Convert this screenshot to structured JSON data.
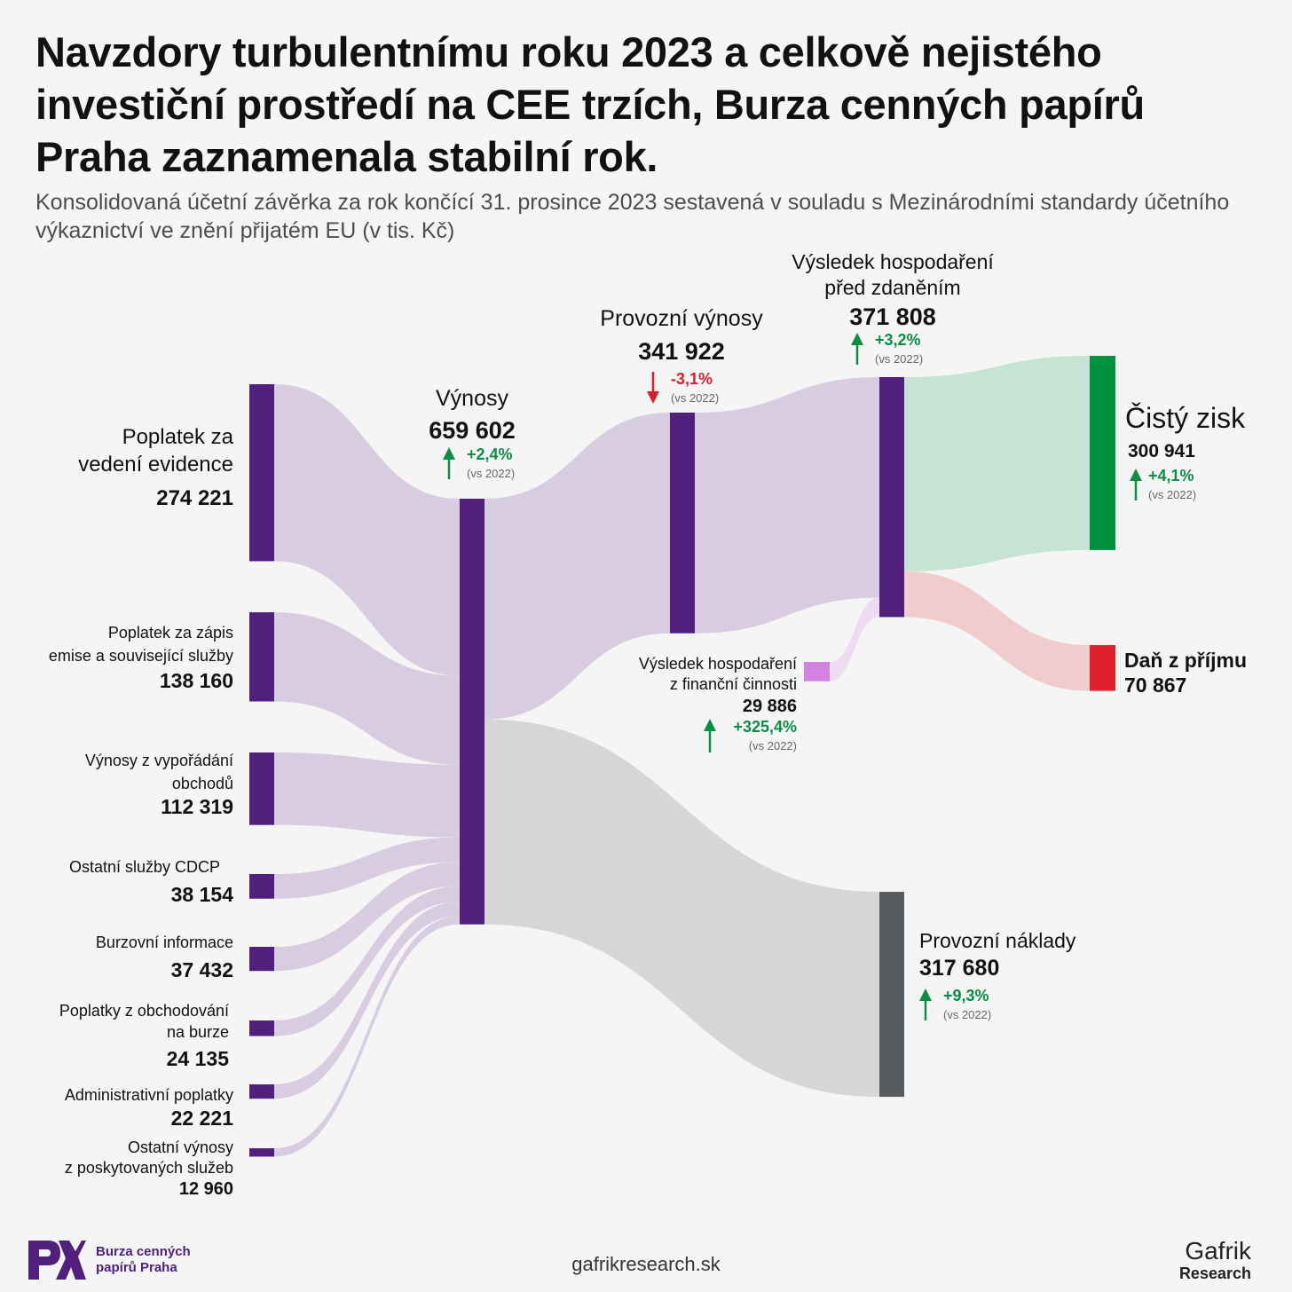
{
  "title": "Navzdory turbulentnímu roku 2023 a celkově nejistého investiční prostředí na CEE trzích, Burza cenných papírů Praha zaznamenala stabilní rok.",
  "subtitle": "Konsolidovaná účetní závěrka za rok končící 31. prosince 2023 sestavená v souladu s Mezinárodními standardy účetního výkaznictví ve znění přijatém EU (v tis. Kč)",
  "footer": {
    "logo_line1": "Burza cenných",
    "logo_line2": "papírů Praha",
    "website": "gafrikresearch.sk",
    "brand_line1": "Gafrik",
    "brand_line2": "Research"
  },
  "colors": {
    "node": "#51207c",
    "flow": "#d8cde0",
    "fin_node": "#d283df",
    "fin_flow": "#eedbf2",
    "profit_node": "#00913e",
    "profit_flow": "#c6e3d3",
    "tax_node": "#e0202d",
    "tax_flow": "#f0cccd",
    "cost_node": "#595c5f",
    "cost_flow": "#d6d6d7",
    "up": "#0e8c46",
    "down": "#d81e2c",
    "vs": "#666666"
  },
  "chart_data": {
    "type": "sankey",
    "unit": "tis. Kč",
    "nodes": [
      {
        "id": "poplatek-evidence",
        "label": "Poplatek za vedení evidence",
        "value": "274 221",
        "amount": 274221
      },
      {
        "id": "poplatek-zapis",
        "label": "Poplatek za zápis emise a související služby",
        "value": "138 160",
        "amount": 138160
      },
      {
        "id": "vyporadani",
        "label": "Výnosy z vypořádání obchodů",
        "value": "112 319",
        "amount": 112319
      },
      {
        "id": "ostatni-cdcp",
        "label": "Ostatní služby CDCP",
        "value": "38 154",
        "amount": 38154
      },
      {
        "id": "burzovni-informace",
        "label": "Burzovní informace",
        "value": "37 432",
        "amount": 37432
      },
      {
        "id": "poplatky-obchodovani",
        "label": "Poplatky z obchodování na burze",
        "value": "24 135",
        "amount": 24135
      },
      {
        "id": "administrativni",
        "label": "Administrativní poplatky",
        "value": "22 221",
        "amount": 22221
      },
      {
        "id": "ostatni-vynosy",
        "label": "Ostatní výnosy z poskytovaných služeb",
        "value": "12 960",
        "amount": 12960
      },
      {
        "id": "vynosy",
        "label": "Výnosy",
        "value": "659 602",
        "amount": 659602,
        "change": "+2,4%",
        "direction": "up",
        "vs": "(vs 2022)"
      },
      {
        "id": "provozni-vynosy",
        "label": "Provozní výnosy",
        "value": "341 922",
        "amount": 341922,
        "change": "-3,1%",
        "direction": "down",
        "vs": "(vs 2022)"
      },
      {
        "id": "financni",
        "label": "Výsledek hospodaření z finanční činnosti",
        "value": "29 886",
        "amount": 29886,
        "change": "+325,4%",
        "direction": "up",
        "vs": "(vs 2022)"
      },
      {
        "id": "pred-zdanenim",
        "label": "Výsledek hospodaření před zdaněním",
        "value": "371 808",
        "amount": 371808,
        "change": "+3,2%",
        "direction": "up",
        "vs": "(vs 2022)"
      },
      {
        "id": "cisty-zisk",
        "label": "Čistý zisk",
        "value": "300 941",
        "amount": 300941,
        "change": "+4,1%",
        "direction": "up",
        "vs": "(vs 2022)"
      },
      {
        "id": "dan",
        "label": "Daň z příjmu",
        "value": "70 867",
        "amount": 70867
      },
      {
        "id": "provozni-naklady",
        "label": "Provozní náklady",
        "value": "317 680",
        "amount": 317680,
        "change": "+9,3%",
        "direction": "up",
        "vs": "(vs 2022)"
      }
    ],
    "links": [
      {
        "source": "poplatek-evidence",
        "target": "vynosy",
        "value": 274221
      },
      {
        "source": "poplatek-zapis",
        "target": "vynosy",
        "value": 138160
      },
      {
        "source": "vyporadani",
        "target": "vynosy",
        "value": 112319
      },
      {
        "source": "ostatni-cdcp",
        "target": "vynosy",
        "value": 38154
      },
      {
        "source": "burzovni-informace",
        "target": "vynosy",
        "value": 37432
      },
      {
        "source": "poplatky-obchodovani",
        "target": "vynosy",
        "value": 24135
      },
      {
        "source": "administrativni",
        "target": "vynosy",
        "value": 22221
      },
      {
        "source": "ostatni-vynosy",
        "target": "vynosy",
        "value": 12960
      },
      {
        "source": "vynosy",
        "target": "provozni-vynosy",
        "value": 341922
      },
      {
        "source": "vynosy",
        "target": "provozni-naklady",
        "value": 317680
      },
      {
        "source": "provozni-vynosy",
        "target": "pred-zdanenim",
        "value": 341922
      },
      {
        "source": "financni",
        "target": "pred-zdanenim",
        "value": 29886
      },
      {
        "source": "pred-zdanenim",
        "target": "cisty-zisk",
        "value": 300941
      },
      {
        "source": "pred-zdanenim",
        "target": "dan",
        "value": 70867
      }
    ]
  }
}
